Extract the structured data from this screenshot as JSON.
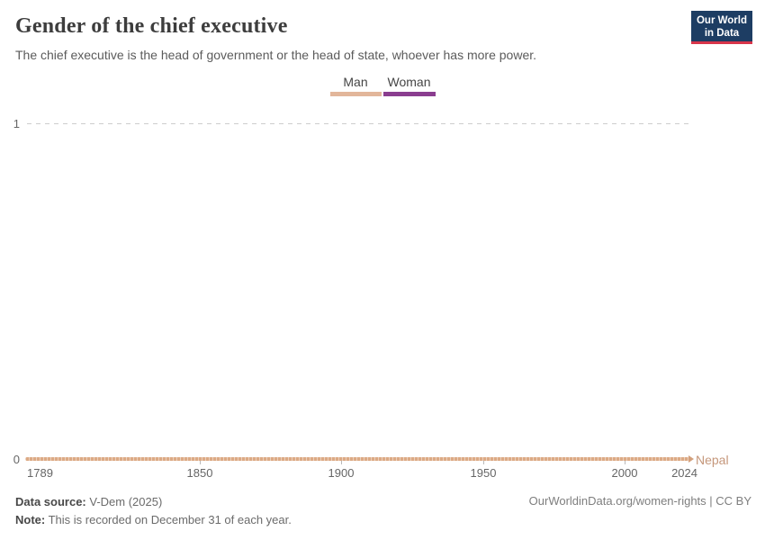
{
  "header": {
    "title": "Gender of the chief executive",
    "subtitle": "The chief executive is the head of government or the head of state, whoever has more power.",
    "logo": {
      "line1": "Our World",
      "line2": "in Data",
      "bg_color": "#1d3d63",
      "accent_color": "#d8354a"
    }
  },
  "legend": {
    "items": [
      {
        "label": "Man",
        "color": "#e2b69a"
      },
      {
        "label": "Woman",
        "color": "#8a3d8f"
      }
    ]
  },
  "chart_data": {
    "type": "line",
    "title": "Gender of the chief executive",
    "entity_label": "Nepal",
    "series": [
      {
        "name": "Nepal",
        "color": "#dcaa85",
        "category_shown": "Man",
        "points": [
          {
            "x": 1789,
            "y": 0
          },
          {
            "x": 2024,
            "y": 0
          }
        ]
      }
    ],
    "x_ticks": [
      "1789",
      "1850",
      "1900",
      "1950",
      "2000",
      "2024"
    ],
    "y_ticks": [
      "0",
      "1"
    ],
    "xlim": [
      1789,
      2024
    ],
    "ylim": [
      0,
      1
    ],
    "grid": "horizontal dashed line at y=1 only",
    "legend_position": "top-center",
    "legend_categories": {
      "Man": "#e2b69a",
      "Woman": "#8a3d8f"
    }
  },
  "footer": {
    "source_label": "Data source:",
    "source_value": " V-Dem (2025)",
    "note_label": "Note:",
    "note_value": " This is recorded on December 31 of each year.",
    "attribution": "OurWorldinData.org/women-rights | CC BY"
  }
}
